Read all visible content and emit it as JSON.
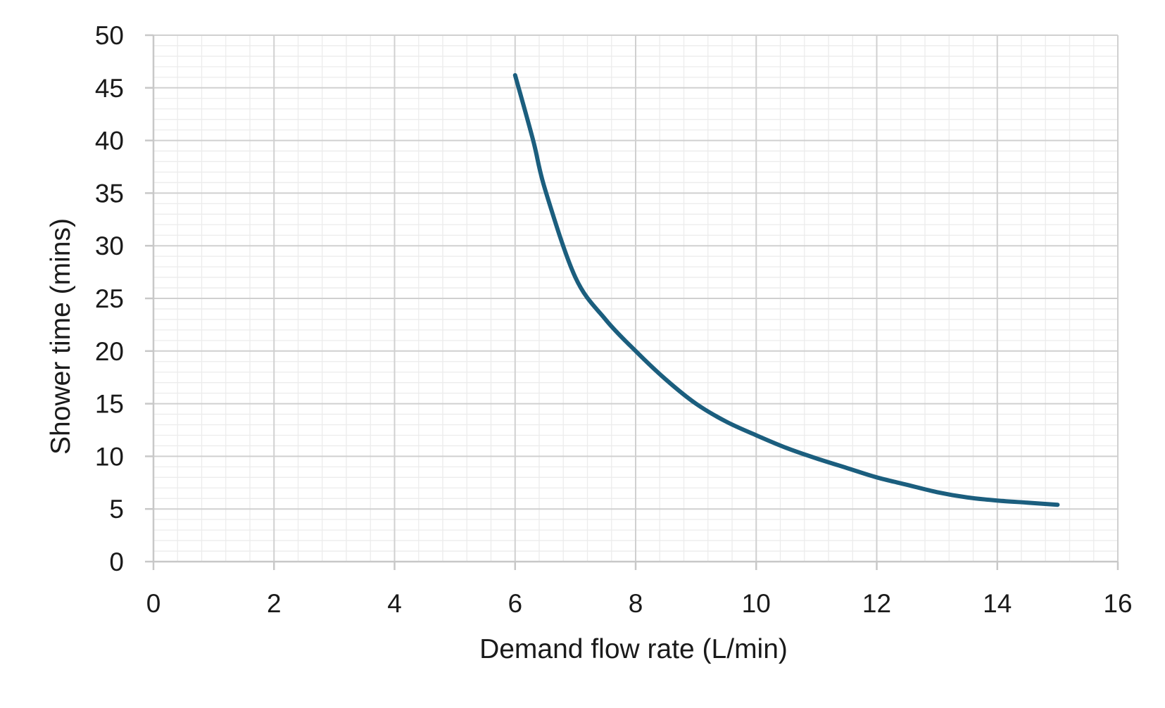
{
  "chart_data": {
    "type": "line",
    "xlabel": "Demand flow rate (L/min)",
    "ylabel": "Shower time (mins)",
    "xlim": [
      0,
      16
    ],
    "ylim": [
      0,
      50
    ],
    "x_ticks": [
      0,
      2,
      4,
      6,
      8,
      10,
      12,
      14,
      16
    ],
    "y_ticks": [
      0,
      5,
      10,
      15,
      20,
      25,
      30,
      35,
      40,
      45,
      50
    ],
    "grid": true,
    "minor_grid": true,
    "legend": "none",
    "series": [
      {
        "color": "#1b5e7e",
        "x": [
          6.0,
          6.3,
          6.5,
          7.0,
          7.5,
          8.0,
          8.5,
          9.0,
          9.5,
          10.0,
          10.5,
          11.0,
          11.5,
          12.0,
          12.5,
          13.0,
          13.5,
          14.0,
          14.5,
          15.0
        ],
        "y": [
          46.2,
          40.0,
          35.3,
          27.0,
          23.0,
          20.0,
          17.3,
          15.0,
          13.3,
          12.0,
          10.8,
          9.8,
          8.9,
          8.0,
          7.3,
          6.6,
          6.1,
          5.8,
          5.6,
          5.4
        ]
      }
    ]
  }
}
